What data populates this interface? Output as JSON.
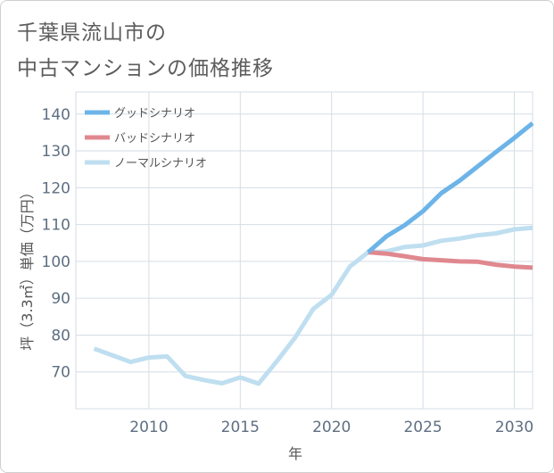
{
  "title_lines": [
    "千葉県流山市の",
    "中古マンションの価格推移"
  ],
  "chart_data": {
    "type": "line",
    "title": "千葉県流山市の中古マンションの価格推移",
    "xlabel": "年",
    "ylabel": "坪（3.3㎡）単価（万円）",
    "xlim": [
      2006,
      2031
    ],
    "ylim": [
      60,
      146
    ],
    "xticks": [
      2010,
      2015,
      2020,
      2025,
      2030
    ],
    "yticks": [
      70,
      80,
      90,
      100,
      110,
      120,
      130,
      140
    ],
    "grid": true,
    "legend_position": "top-left",
    "series": [
      {
        "name": "グッドシナリオ",
        "color": "#6cb4e8",
        "x": [
          2022,
          2023,
          2024,
          2025,
          2026,
          2027,
          2028,
          2029,
          2030,
          2031
        ],
        "y": [
          102.5,
          106.8,
          109.8,
          113.6,
          118.5,
          121.9,
          125.8,
          129.7,
          133.5,
          137.5
        ]
      },
      {
        "name": "バッドシナリオ",
        "color": "#e0888f",
        "x": [
          2022,
          2023,
          2024,
          2025,
          2026,
          2027,
          2028,
          2029,
          2030,
          2031
        ],
        "y": [
          102.5,
          102.1,
          101.4,
          100.6,
          100.3,
          100.0,
          99.9,
          99.1,
          98.6,
          98.3
        ]
      },
      {
        "name": "ノーマルシナリオ",
        "color": "#bfdff0",
        "x": [
          2007,
          2008,
          2009,
          2010,
          2011,
          2012,
          2013,
          2014,
          2015,
          2016,
          2017,
          2018,
          2019,
          2020,
          2021,
          2022,
          2023,
          2024,
          2025,
          2026,
          2027,
          2028,
          2029,
          2030,
          2031
        ],
        "y": [
          76.3,
          74.5,
          72.7,
          73.9,
          74.2,
          68.9,
          67.8,
          66.9,
          68.5,
          66.8,
          72.9,
          79.3,
          87.1,
          90.9,
          98.6,
          102.5,
          102.7,
          103.9,
          104.3,
          105.6,
          106.2,
          107.1,
          107.6,
          108.7,
          109.1
        ]
      }
    ]
  }
}
